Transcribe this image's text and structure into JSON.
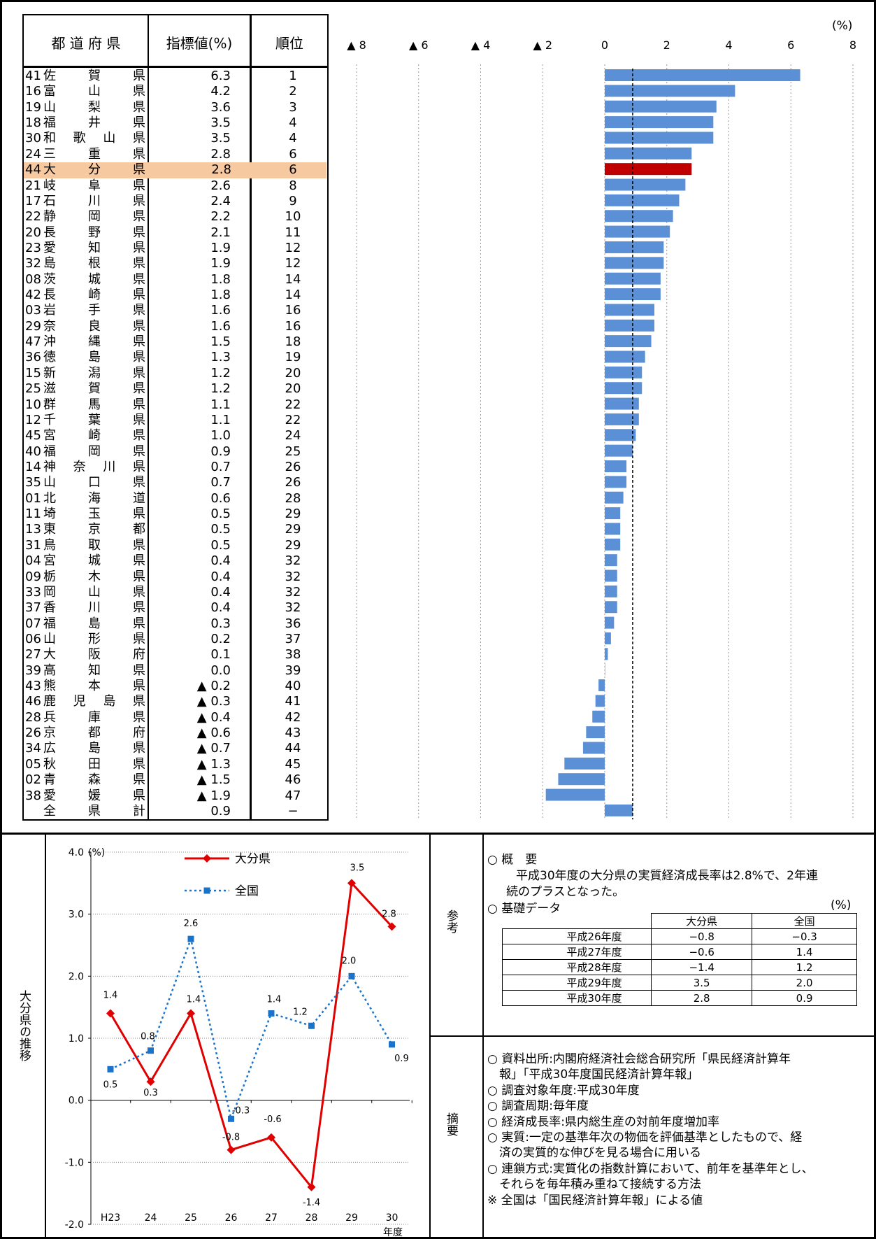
{
  "table_header": {
    "pref": "都 道 府 県",
    "value": "指標値(%)",
    "rank": "順位"
  },
  "rows": [
    {
      "code": "41",
      "name": "佐賀県",
      "value": "6.3",
      "rank": "1"
    },
    {
      "code": "16",
      "name": "富山県",
      "value": "4.2",
      "rank": "2"
    },
    {
      "code": "19",
      "name": "山梨県",
      "value": "3.6",
      "rank": "3"
    },
    {
      "code": "18",
      "name": "福井県",
      "value": "3.5",
      "rank": "4"
    },
    {
      "code": "30",
      "name": "和歌山県",
      "value": "3.5",
      "rank": "4"
    },
    {
      "code": "24",
      "name": "三重県",
      "value": "2.8",
      "rank": "6"
    },
    {
      "code": "44",
      "name": "大分県",
      "value": "2.8",
      "rank": "6"
    },
    {
      "code": "21",
      "name": "岐阜県",
      "value": "2.6",
      "rank": "8"
    },
    {
      "code": "17",
      "name": "石川県",
      "value": "2.4",
      "rank": "9"
    },
    {
      "code": "22",
      "name": "静岡県",
      "value": "2.2",
      "rank": "10"
    },
    {
      "code": "20",
      "name": "長野県",
      "value": "2.1",
      "rank": "11"
    },
    {
      "code": "23",
      "name": "愛知県",
      "value": "1.9",
      "rank": "12"
    },
    {
      "code": "32",
      "name": "島根県",
      "value": "1.9",
      "rank": "12"
    },
    {
      "code": "08",
      "name": "茨城県",
      "value": "1.8",
      "rank": "14"
    },
    {
      "code": "42",
      "name": "長崎県",
      "value": "1.8",
      "rank": "14"
    },
    {
      "code": "03",
      "name": "岩手県",
      "value": "1.6",
      "rank": "16"
    },
    {
      "code": "29",
      "name": "奈良県",
      "value": "1.6",
      "rank": "16"
    },
    {
      "code": "47",
      "name": "沖縄県",
      "value": "1.5",
      "rank": "18"
    },
    {
      "code": "36",
      "name": "徳島県",
      "value": "1.3",
      "rank": "19"
    },
    {
      "code": "15",
      "name": "新潟県",
      "value": "1.2",
      "rank": "20"
    },
    {
      "code": "25",
      "name": "滋賀県",
      "value": "1.2",
      "rank": "20"
    },
    {
      "code": "10",
      "name": "群馬県",
      "value": "1.1",
      "rank": "22"
    },
    {
      "code": "12",
      "name": "千葉県",
      "value": "1.1",
      "rank": "22"
    },
    {
      "code": "45",
      "name": "宮崎県",
      "value": "1.0",
      "rank": "24"
    },
    {
      "code": "40",
      "name": "福岡県",
      "value": "0.9",
      "rank": "25"
    },
    {
      "code": "14",
      "name": "神奈川県",
      "value": "0.7",
      "rank": "26"
    },
    {
      "code": "35",
      "name": "山口県",
      "value": "0.7",
      "rank": "26"
    },
    {
      "code": "01",
      "name": "北海道",
      "value": "0.6",
      "rank": "28"
    },
    {
      "code": "11",
      "name": "埼玉県",
      "value": "0.5",
      "rank": "29"
    },
    {
      "code": "13",
      "name": "東京都",
      "value": "0.5",
      "rank": "29"
    },
    {
      "code": "31",
      "name": "鳥取県",
      "value": "0.5",
      "rank": "29"
    },
    {
      "code": "04",
      "name": "宮城県",
      "value": "0.4",
      "rank": "32"
    },
    {
      "code": "09",
      "name": "栃木県",
      "value": "0.4",
      "rank": "32"
    },
    {
      "code": "33",
      "name": "岡山県",
      "value": "0.4",
      "rank": "32"
    },
    {
      "code": "37",
      "name": "香川県",
      "value": "0.4",
      "rank": "32"
    },
    {
      "code": "07",
      "name": "福島県",
      "value": "0.3",
      "rank": "36"
    },
    {
      "code": "06",
      "name": "山形県",
      "value": "0.2",
      "rank": "37"
    },
    {
      "code": "27",
      "name": "大阪府",
      "value": "0.1",
      "rank": "38"
    },
    {
      "code": "39",
      "name": "高知県",
      "value": "0.0",
      "rank": "39"
    },
    {
      "code": "43",
      "name": "熊本県",
      "value": "▲ 0.2",
      "rank": "40"
    },
    {
      "code": "46",
      "name": "鹿児島県",
      "value": "▲ 0.3",
      "rank": "41"
    },
    {
      "code": "28",
      "name": "兵庫県",
      "value": "▲ 0.4",
      "rank": "42"
    },
    {
      "code": "26",
      "name": "京都府",
      "value": "▲ 0.6",
      "rank": "43"
    },
    {
      "code": "34",
      "name": "広島県",
      "value": "▲ 0.7",
      "rank": "44"
    },
    {
      "code": "05",
      "name": "秋田県",
      "value": "▲ 1.3",
      "rank": "45"
    },
    {
      "code": "02",
      "name": "青森県",
      "value": "▲ 1.5",
      "rank": "46"
    },
    {
      "code": "38",
      "name": "愛媛県",
      "value": "▲ 1.9",
      "rank": "47"
    },
    {
      "code": "",
      "name": "全県計",
      "value": "0.9",
      "rank": "−"
    }
  ],
  "highlight_row": "大分県",
  "colors": {
    "bar": "#5b8fd6",
    "highlight_bar": "#c00000",
    "highlight_row": "#f6c9a0",
    "oita_line": "#e00000",
    "national_line": "#1a73c9"
  },
  "chart_data": [
    {
      "type": "bar",
      "orientation": "horizontal",
      "unit_label": "(%)",
      "xlim": [
        -8,
        8
      ],
      "x_ticks": [
        "▲ 8",
        "▲ 6",
        "▲ 4",
        "▲ 2",
        "0",
        "2",
        "4",
        "6",
        "8"
      ],
      "x_tick_values": [
        -8,
        -6,
        -4,
        -2,
        0,
        2,
        4,
        6,
        8
      ],
      "categories": [
        "佐賀県",
        "富山県",
        "山梨県",
        "福井県",
        "和歌山県",
        "三重県",
        "大分県",
        "岐阜県",
        "石川県",
        "静岡県",
        "長野県",
        "愛知県",
        "島根県",
        "茨城県",
        "長崎県",
        "岩手県",
        "奈良県",
        "沖縄県",
        "徳島県",
        "新潟県",
        "滋賀県",
        "群馬県",
        "千葉県",
        "宮崎県",
        "福岡県",
        "神奈川県",
        "山口県",
        "北海道",
        "埼玉県",
        "東京都",
        "鳥取県",
        "宮城県",
        "栃木県",
        "岡山県",
        "香川県",
        "福島県",
        "山形県",
        "大阪府",
        "高知県",
        "熊本県",
        "鹿児島県",
        "兵庫県",
        "京都府",
        "広島県",
        "秋田県",
        "青森県",
        "愛媛県",
        "全県計"
      ],
      "values": [
        6.3,
        4.2,
        3.6,
        3.5,
        3.5,
        2.8,
        2.8,
        2.6,
        2.4,
        2.2,
        2.1,
        1.9,
        1.9,
        1.8,
        1.8,
        1.6,
        1.6,
        1.5,
        1.3,
        1.2,
        1.2,
        1.1,
        1.1,
        1.0,
        0.9,
        0.7,
        0.7,
        0.6,
        0.5,
        0.5,
        0.5,
        0.4,
        0.4,
        0.4,
        0.4,
        0.3,
        0.2,
        0.1,
        0.0,
        -0.2,
        -0.3,
        -0.4,
        -0.6,
        -0.7,
        -1.3,
        -1.5,
        -1.9,
        0.9
      ],
      "reference_line": 0.9,
      "grid": "vertical-dotted"
    },
    {
      "type": "line",
      "ylabel": "(%)",
      "ylim": [
        -2.0,
        4.0
      ],
      "y_ticks": [
        "4.0",
        "3.0",
        "2.0",
        "1.0",
        "0.0",
        "-1.0",
        "-2.0"
      ],
      "y_tick_values": [
        4,
        3,
        2,
        1,
        0,
        -1,
        -2
      ],
      "x": [
        "H23",
        "24",
        "25",
        "26",
        "27",
        "28",
        "29",
        "30"
      ],
      "xlabel": "年度",
      "series": [
        {
          "name": "大分県",
          "values": [
            1.4,
            0.3,
            1.4,
            -0.8,
            -0.6,
            -1.4,
            3.5,
            2.8
          ],
          "labels": [
            "1.4",
            "0.3",
            "1.4",
            "-0.8",
            "-0.6",
            "-1.4",
            "3.5",
            "2.8"
          ]
        },
        {
          "name": "全国",
          "values": [
            0.5,
            0.8,
            2.6,
            -0.3,
            1.4,
            1.2,
            2.0,
            0.9
          ],
          "labels": [
            "0.5",
            "0.8",
            "2.6",
            "-0.3",
            "1.4",
            "1.2",
            "2.0",
            "0.9"
          ]
        }
      ],
      "legend": "top-center"
    }
  ],
  "side_label": "大分県の推移",
  "ref_label": "参考",
  "summary_label": "摘要",
  "overview": {
    "heading": "○ 概　要",
    "line1": "平成30年度の大分県の実質経済成長率は2.8%で、2年連",
    "line2": "続のプラスとなった。",
    "data_heading": "○ 基礎データ",
    "unit": "(%)"
  },
  "basic_table": {
    "headers": [
      "",
      "大分県",
      "全国"
    ],
    "rows": [
      [
        "平成26年度",
        "−0.8",
        "−0.3"
      ],
      [
        "平成27年度",
        "−0.6",
        "1.4"
      ],
      [
        "平成28年度",
        "−1.4",
        "1.2"
      ],
      [
        "平成29年度",
        "3.5",
        "2.0"
      ],
      [
        "平成30年度",
        "2.8",
        "0.9"
      ]
    ]
  },
  "notes": [
    "○ 資料出所:内閣府経済社会総合研究所「県民経済計算年",
    "　報」「平成30年度国民経済計算年報」",
    "○ 調査対象年度:平成30年度",
    "○ 調査周期:毎年度",
    "○ 経済成長率:県内総生産の対前年度増加率",
    "○ 実質:一定の基準年次の物価を評価基準としたもので、経",
    "　済の実質的な伸びを見る場合に用いる",
    "○ 連鎖方式:実質化の指数計算において、前年を基準年とし、",
    "　それらを毎年積み重ねて接続する方法",
    "※ 全国は「国民経済計算年報」による値"
  ]
}
